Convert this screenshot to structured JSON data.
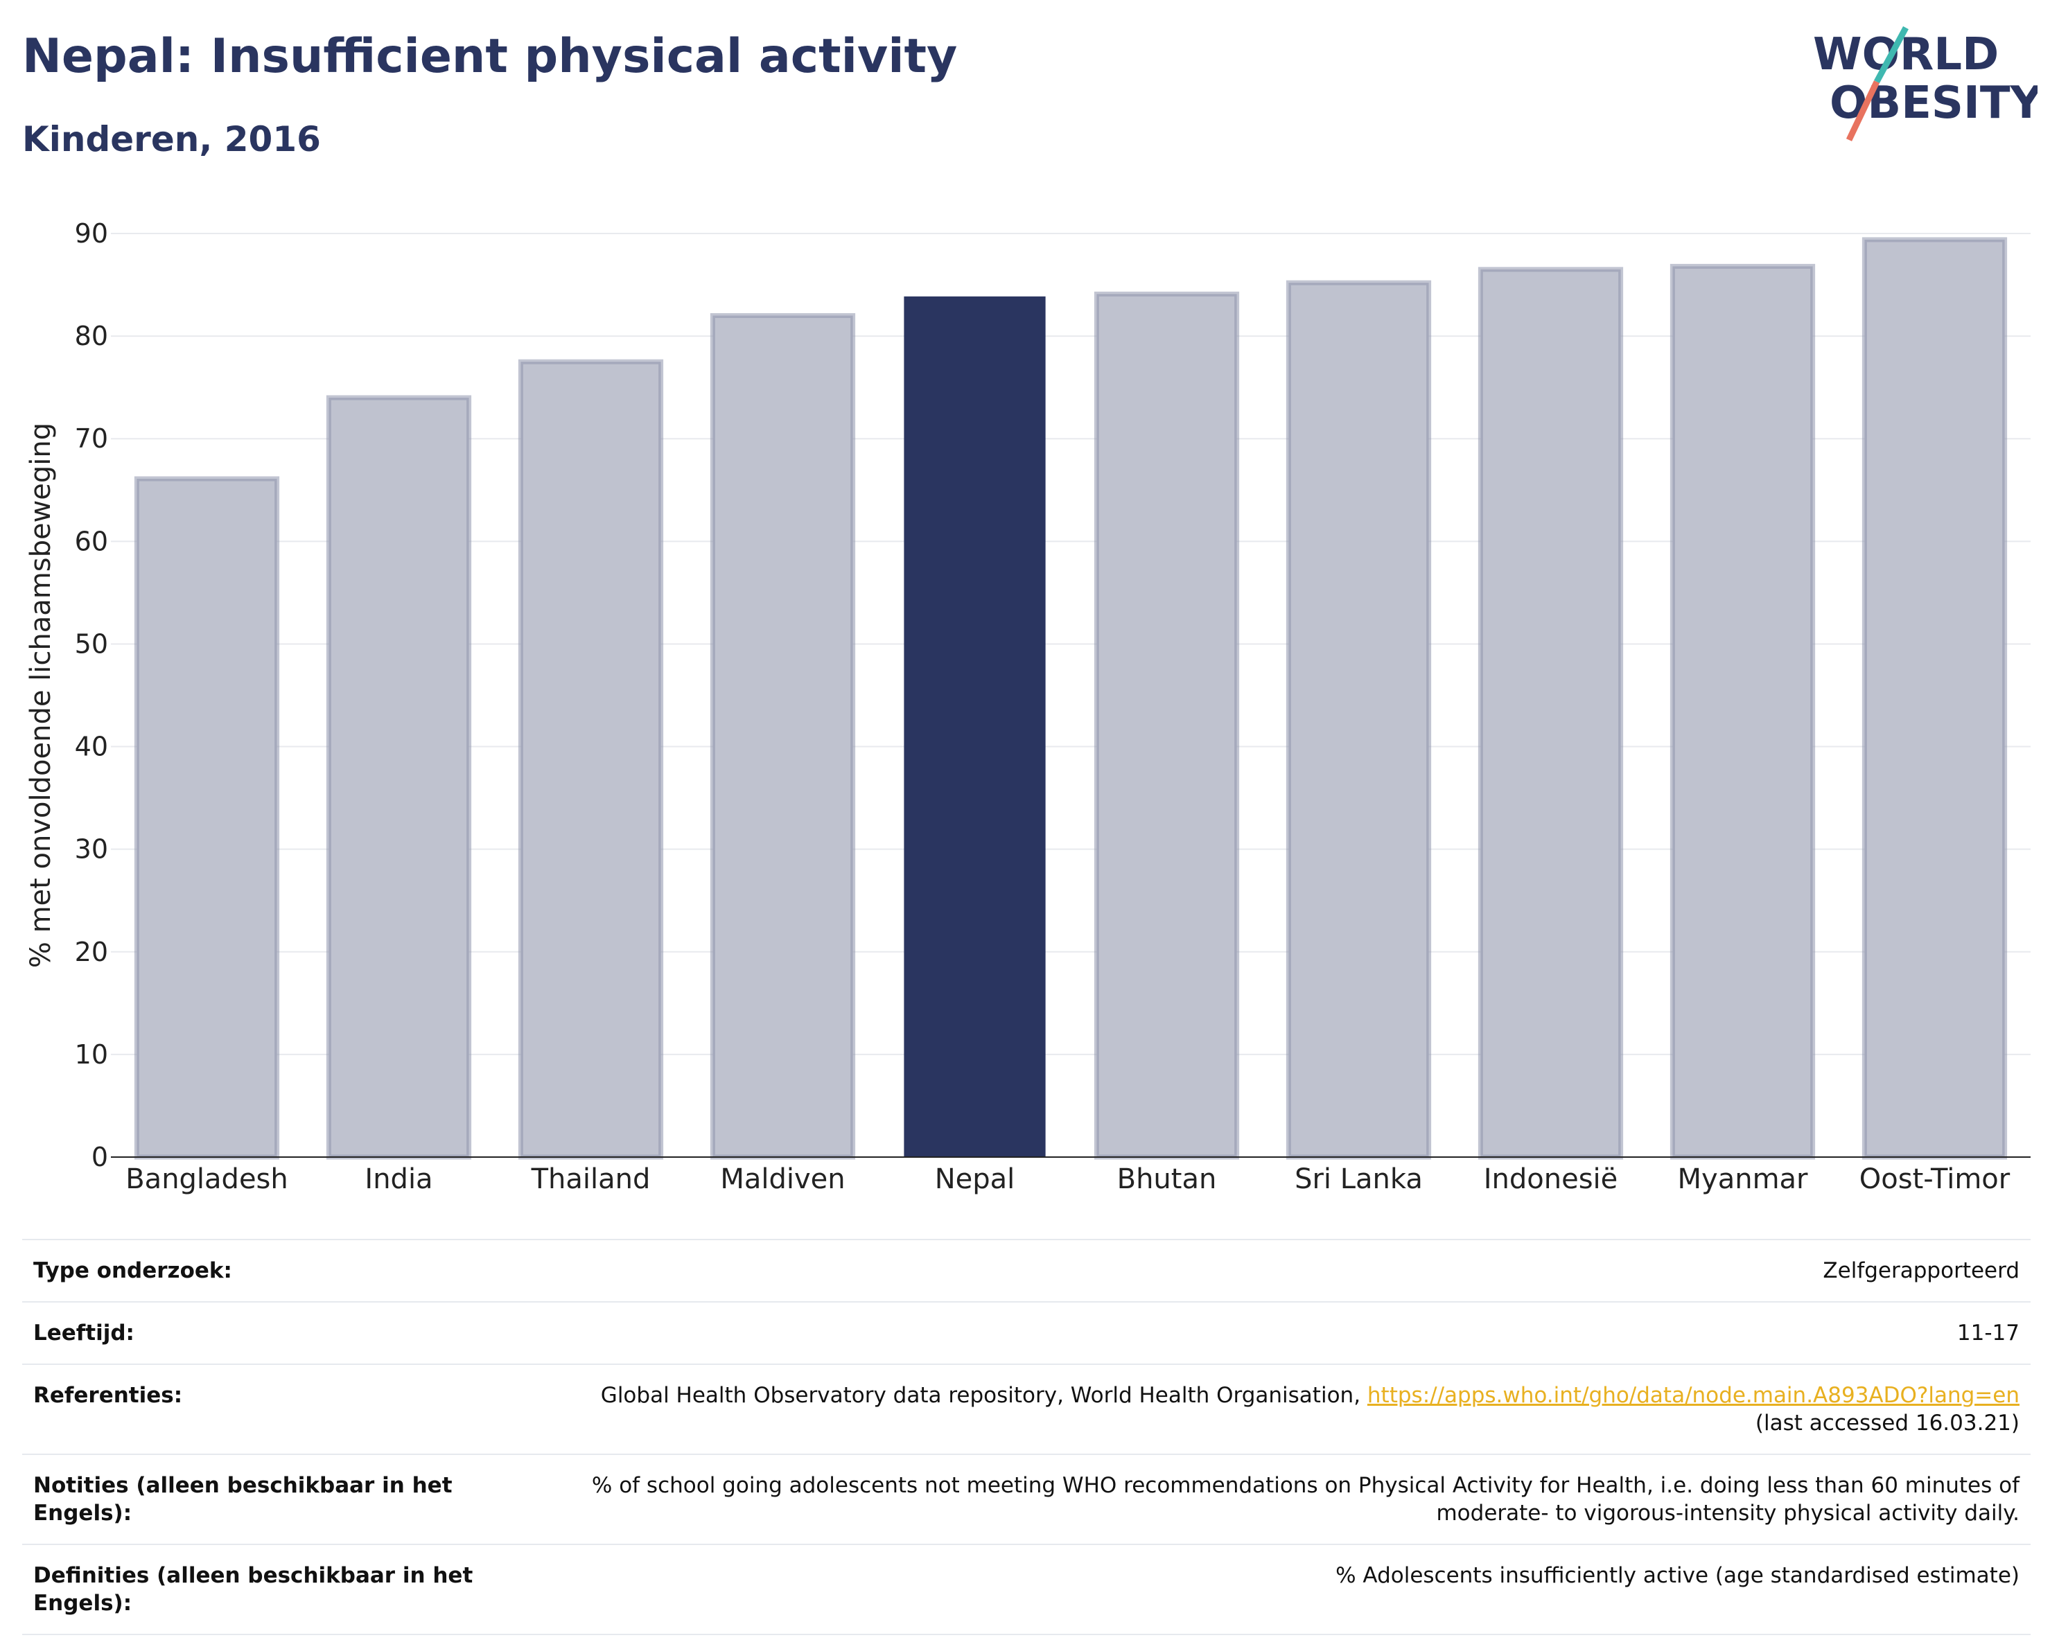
{
  "header": {
    "title": "Nepal: Insufficient physical activity",
    "subtitle": "Kinderen, 2016",
    "logo_text_line1": "WORLD",
    "logo_text_line2": "OBESITY"
  },
  "colors": {
    "highlight": "#2a3560",
    "bar": "#bfc2cf",
    "bar_border": "#8f95ad",
    "link": "#e8b020",
    "logo_teal": "#3fb8b0",
    "logo_coral": "#e8735f"
  },
  "chart_data": {
    "type": "bar",
    "categories": [
      "Bangladesh",
      "India",
      "Thailand",
      "Maldiven",
      "Nepal",
      "Bhutan",
      "Sri Lanka",
      "Indonesië",
      "Myanmar",
      "Oost-Timor"
    ],
    "values": [
      66.1,
      74.0,
      77.5,
      82.0,
      83.8,
      84.1,
      85.2,
      86.5,
      86.8,
      89.4
    ],
    "highlight": "Nepal",
    "ylabel": "% met onvoldoende lichaamsbeweging",
    "ylim": [
      0,
      90
    ],
    "yticks": [
      0,
      10,
      20,
      30,
      40,
      50,
      60,
      70,
      80,
      90
    ],
    "grid": true
  },
  "info": {
    "rows": [
      {
        "label": "Type onderzoek:",
        "value": "Zelfgerapporteerd"
      },
      {
        "label": "Leeftijd:",
        "value": "11-17"
      },
      {
        "label": "Referenties:",
        "value": "Global Health Observatory data repository, World Health Organisation, ",
        "link": "https://apps.who.int/gho/data/node.main.A893ADO?lang=en",
        "value2": "(last accessed 16.03.21)"
      },
      {
        "label": "Notities (alleen beschikbaar in het Engels):",
        "value": "% of school going adolescents not meeting WHO recommendations on Physical Activity for Health, i.e. doing less than 60 minutes of moderate- to vigorous-intensity physical activity daily."
      },
      {
        "label": "Definities (alleen beschikbaar in het Engels):",
        "value": "% Adolescents insufficiently active (age standardised estimate)"
      }
    ]
  }
}
